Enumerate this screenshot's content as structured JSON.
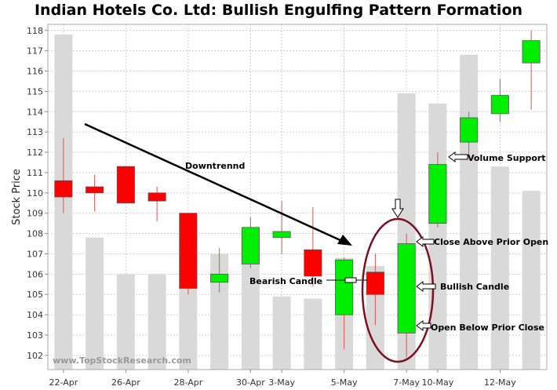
{
  "chart_data": {
    "type": "candlestick",
    "title": "Indian Hotels Co. Ltd: Bullish Engulfing Pattern Formation",
    "ylabel": "Stock Price",
    "ylim": [
      101.3,
      118.3
    ],
    "yticks": [
      102,
      103,
      104,
      105,
      106,
      107,
      108,
      109,
      110,
      111,
      112,
      113,
      114,
      115,
      116,
      117,
      118
    ],
    "grid": true,
    "colors": {
      "up": "#00ee00",
      "down": "#ff0000",
      "volume": "#d9d9d9",
      "grid": "#cccccc",
      "circle": "#7a1020"
    },
    "watermark": "www.TopStockResearch.com",
    "x_tick_labels": [
      {
        "index": 0,
        "label": "22-Apr"
      },
      {
        "index": 2,
        "label": "26-Apr"
      },
      {
        "index": 4,
        "label": "28-Apr"
      },
      {
        "index": 6,
        "label": "30-Apr"
      },
      {
        "index": 7,
        "label": "3-May"
      },
      {
        "index": 9,
        "label": "5-May"
      },
      {
        "index": 11,
        "label": "7-May"
      },
      {
        "index": 12,
        "label": "10-May"
      },
      {
        "index": 14,
        "label": "12-May"
      }
    ],
    "candles": [
      {
        "open": 110.6,
        "high": 112.7,
        "low": 109.0,
        "close": 109.8
      },
      {
        "open": 110.3,
        "high": 110.9,
        "low": 109.1,
        "close": 110.0
      },
      {
        "open": 111.3,
        "high": 111.3,
        "low": 109.5,
        "close": 109.5
      },
      {
        "open": 110.0,
        "high": 110.3,
        "low": 108.6,
        "close": 109.6
      },
      {
        "open": 109.0,
        "high": 109.0,
        "low": 105.0,
        "close": 105.3
      },
      {
        "open": 105.6,
        "high": 107.3,
        "low": 105.1,
        "close": 106.0
      },
      {
        "open": 106.5,
        "high": 108.8,
        "low": 106.3,
        "close": 108.3
      },
      {
        "open": 107.8,
        "high": 109.6,
        "low": 107.0,
        "close": 108.1
      },
      {
        "open": 107.2,
        "high": 109.3,
        "low": 105.4,
        "close": 105.9
      },
      {
        "open": 104.0,
        "high": 106.8,
        "low": 102.3,
        "close": 106.7
      },
      {
        "open": 106.1,
        "high": 107.0,
        "low": 103.5,
        "close": 105.0
      },
      {
        "open": 103.1,
        "high": 108.0,
        "low": 101.9,
        "close": 107.5
      },
      {
        "open": 108.5,
        "high": 112.0,
        "low": 108.3,
        "close": 111.4
      },
      {
        "open": 112.5,
        "high": 114.0,
        "low": 111.7,
        "close": 113.7
      },
      {
        "open": 113.9,
        "high": 115.6,
        "low": 113.5,
        "close": 114.8
      },
      {
        "open": 116.4,
        "high": 118.0,
        "low": 114.1,
        "close": 117.5
      }
    ],
    "volume_bar_tops": [
      117.8,
      107.8,
      106.0,
      106.0,
      107.0,
      107.0,
      106.8,
      104.9,
      104.8,
      106.8,
      106.4,
      114.9,
      114.4,
      116.8,
      111.3,
      110.1
    ],
    "annotations": [
      {
        "name": "downtrend",
        "text": "Downtrennd"
      },
      {
        "name": "bearish-candle",
        "text": "Bearish Candle"
      },
      {
        "name": "volume-support",
        "text": "Volume Support"
      },
      {
        "name": "close-above-prior-open",
        "text": "Close Above Prior Open"
      },
      {
        "name": "bullish-candle",
        "text": "Bullish Candle"
      },
      {
        "name": "open-below-prior-close",
        "text": "Open Below Prior Close"
      }
    ]
  }
}
